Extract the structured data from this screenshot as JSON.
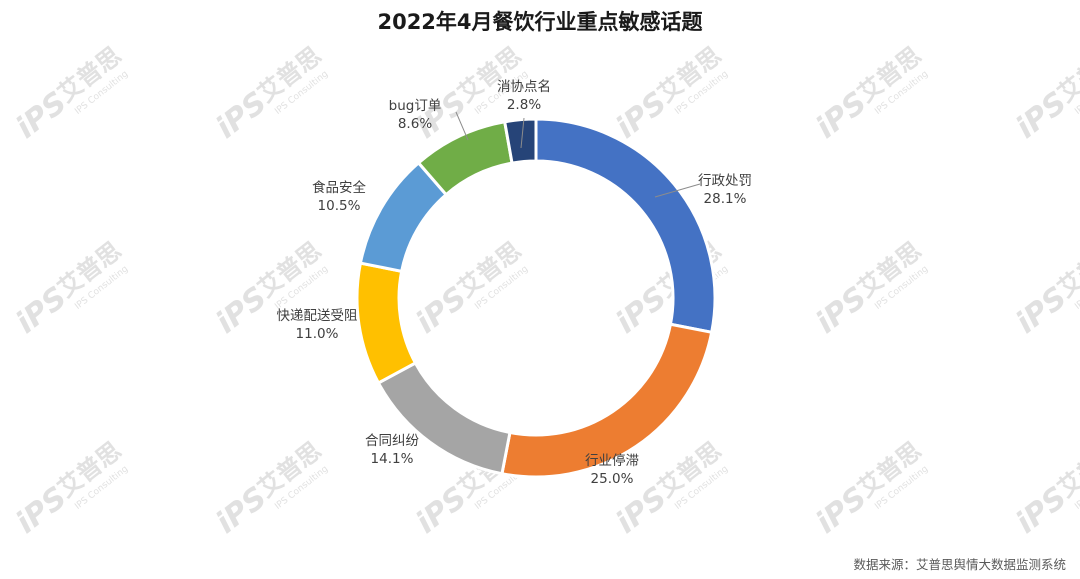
{
  "chart_data": {
    "type": "pie",
    "subtype": "donut",
    "title": "2022年4月餐饮行业重点敏感话题",
    "start_angle_deg": 0,
    "direction": "clockwise",
    "slices": [
      {
        "label": "行政处罚",
        "value": 28.1,
        "value_label": "28.1%",
        "color": "#4472C4"
      },
      {
        "label": "行业停滞",
        "value": 25.0,
        "value_label": "25.0%",
        "color": "#ED7D31"
      },
      {
        "label": "合同纠纷",
        "value": 14.1,
        "value_label": "14.1%",
        "color": "#A5A5A5"
      },
      {
        "label": "快递配送受阻",
        "value": 11.0,
        "value_label": "11.0%",
        "color": "#FFC000"
      },
      {
        "label": "食品安全",
        "value": 10.5,
        "value_label": "10.5%",
        "color": "#5B9BD5"
      },
      {
        "label": "bug订单",
        "value": 8.6,
        "value_label": "8.6%",
        "color": "#70AD47"
      },
      {
        "label": "消协点名",
        "value": 2.8,
        "value_label": "2.8%",
        "color": "#264478"
      }
    ],
    "legend": "none",
    "source": "数据来源：艾普思舆情大数据监测系统"
  },
  "watermark": {
    "text": "艾普思",
    "subtext": "IPS Consulting",
    "logo_text": "iPS"
  }
}
